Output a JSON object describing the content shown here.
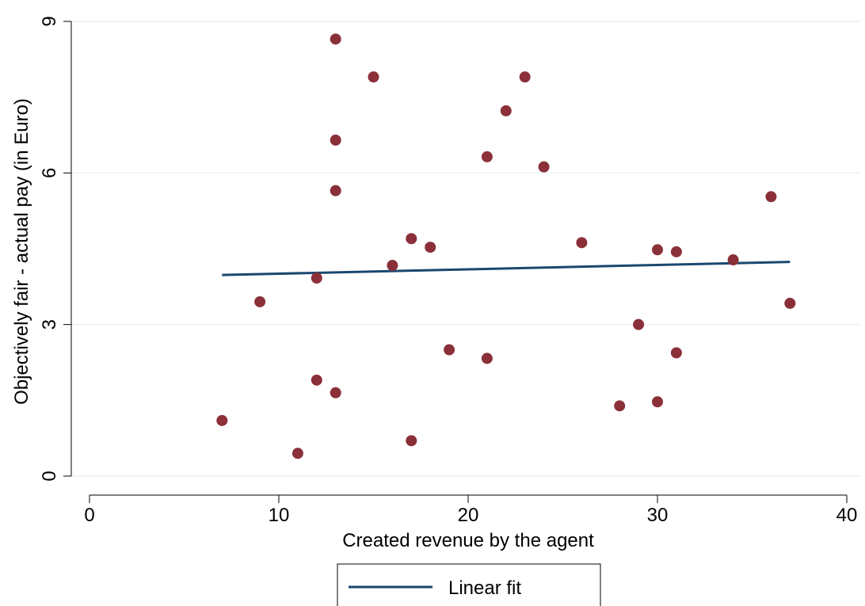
{
  "chart_data": {
    "type": "scatter",
    "xlabel": "Created revenue by the agent",
    "ylabel": "Objectively fair - actual pay (in Euro)",
    "xlim": [
      0,
      40
    ],
    "ylim": [
      0,
      9
    ],
    "x_ticks": [
      0,
      10,
      20,
      30,
      40
    ],
    "y_ticks": [
      0,
      3,
      6,
      9
    ],
    "grid": "horizontal",
    "legend_placement": "bottom",
    "marker_color": "#8b3039",
    "line_color": "#1a476f",
    "series": [
      {
        "type": "scatter",
        "points": [
          {
            "x": 7,
            "y": 1.1
          },
          {
            "x": 9,
            "y": 3.45
          },
          {
            "x": 11,
            "y": 0.45
          },
          {
            "x": 12,
            "y": 3.92
          },
          {
            "x": 12,
            "y": 1.9
          },
          {
            "x": 13,
            "y": 8.65
          },
          {
            "x": 13,
            "y": 6.65
          },
          {
            "x": 13,
            "y": 5.65
          },
          {
            "x": 13,
            "y": 1.65
          },
          {
            "x": 15,
            "y": 7.9
          },
          {
            "x": 16,
            "y": 4.17
          },
          {
            "x": 17,
            "y": 4.7
          },
          {
            "x": 17,
            "y": 0.7
          },
          {
            "x": 18,
            "y": 4.53
          },
          {
            "x": 19,
            "y": 2.5
          },
          {
            "x": 21,
            "y": 6.32
          },
          {
            "x": 21,
            "y": 2.33
          },
          {
            "x": 22,
            "y": 7.23
          },
          {
            "x": 23,
            "y": 7.9
          },
          {
            "x": 24,
            "y": 6.12
          },
          {
            "x": 26,
            "y": 4.62
          },
          {
            "x": 28,
            "y": 1.39
          },
          {
            "x": 29,
            "y": 3.0
          },
          {
            "x": 30,
            "y": 4.48
          },
          {
            "x": 30,
            "y": 1.47
          },
          {
            "x": 31,
            "y": 4.44
          },
          {
            "x": 31,
            "y": 2.44
          },
          {
            "x": 34,
            "y": 4.28
          },
          {
            "x": 36,
            "y": 5.53
          },
          {
            "x": 37,
            "y": 3.42
          }
        ]
      },
      {
        "name": "Linear fit",
        "type": "line",
        "points": [
          {
            "x": 7,
            "y": 3.98
          },
          {
            "x": 37,
            "y": 4.24
          }
        ]
      }
    ]
  }
}
